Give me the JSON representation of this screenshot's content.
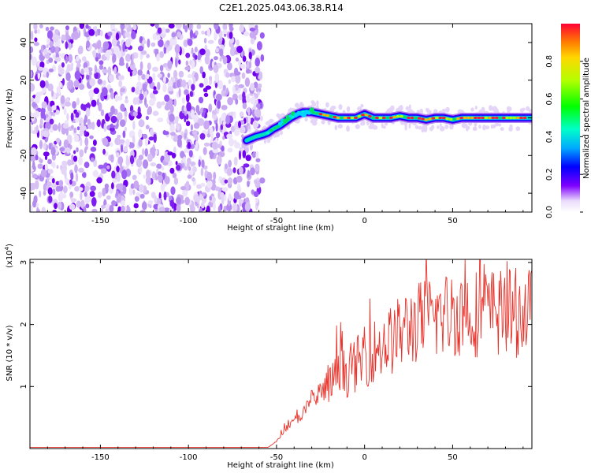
{
  "title": "C2E1.2025.043.06.38.R14",
  "chart_data": [
    {
      "type": "heatmap",
      "xlabel": "Height of straight line (km)",
      "ylabel": "Frequency (Hz)",
      "xlim": [
        -190,
        95
      ],
      "ylim": [
        -50,
        50
      ],
      "x_ticks": [
        -150,
        -100,
        -50,
        0,
        50
      ],
      "y_ticks": [
        -40,
        -20,
        0,
        20,
        40
      ],
      "colorbar": {
        "label": "Normalized spectral amplitude",
        "range": [
          0,
          1
        ],
        "ticks": [
          0.0,
          0.2,
          0.4,
          0.6,
          0.8
        ]
      },
      "noise_region_x": [
        -190,
        -58
      ],
      "ridge": {
        "x": [
          -67,
          -62,
          -58,
          -55,
          -52,
          -48,
          -45,
          -42,
          -38,
          -35,
          -30,
          -25,
          -20,
          -15,
          -10,
          -5,
          0,
          5,
          10,
          15,
          20,
          25,
          30,
          35,
          40,
          45,
          50,
          55,
          60,
          70,
          80,
          95
        ],
        "y": [
          -12,
          -10,
          -9,
          -8,
          -6,
          -4,
          -2,
          0,
          2,
          3,
          3,
          2,
          1,
          0,
          0,
          0,
          2,
          0,
          0,
          0,
          1,
          0,
          0,
          -1,
          0,
          0,
          -1,
          0,
          0,
          0,
          0,
          0
        ]
      }
    },
    {
      "type": "line",
      "xlabel": "Height of straight line (km)",
      "ylabel": "SNR (10 * v/v)",
      "scale_label": "(x10",
      "scale_exp": "4",
      "scale_close": ")",
      "xlim": [
        -190,
        95
      ],
      "ylim": [
        0,
        3.05
      ],
      "x_ticks": [
        -150,
        -100,
        -50,
        0,
        50
      ],
      "y_ticks": [
        1,
        2,
        3
      ],
      "series_color": "#e8322a",
      "envelope": {
        "x": [
          -190,
          -55,
          -50,
          -45,
          -40,
          -35,
          -30,
          -25,
          -20,
          -15,
          -10,
          -5,
          0,
          5,
          10,
          15,
          20,
          25,
          30,
          35,
          40,
          45,
          50,
          55,
          60,
          65,
          70,
          75,
          80,
          85,
          90,
          95
        ],
        "y": [
          0.02,
          0.02,
          0.15,
          0.35,
          0.5,
          0.6,
          0.75,
          0.85,
          0.95,
          1.05,
          1.1,
          1.2,
          1.3,
          1.4,
          1.45,
          1.55,
          1.65,
          1.75,
          1.8,
          1.85,
          1.9,
          1.9,
          1.95,
          1.95,
          1.95,
          1.95,
          1.95,
          1.95,
          1.95,
          1.95,
          1.95,
          1.95
        ]
      }
    }
  ]
}
